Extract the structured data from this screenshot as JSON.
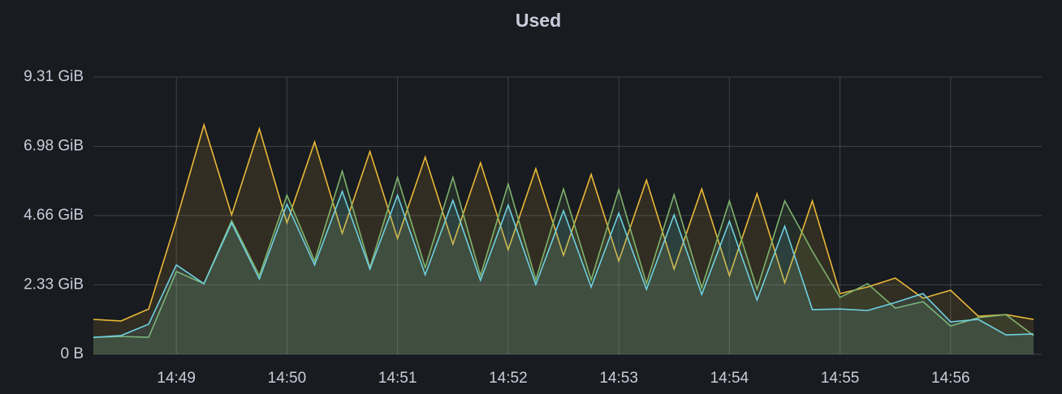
{
  "chart_data": {
    "type": "area",
    "title": "Used",
    "categories": [
      null,
      null,
      null,
      "14:49",
      null,
      null,
      null,
      "14:50",
      null,
      null,
      null,
      "14:51",
      null,
      null,
      null,
      "14:52",
      null,
      null,
      null,
      "14:53",
      null,
      null,
      null,
      "14:54",
      null,
      null,
      null,
      "14:55",
      null,
      null,
      null,
      "14:56",
      null,
      null,
      null
    ],
    "series": [
      {
        "color": "#eab839",
        "values": [
          1.17,
          1.12,
          1.52,
          4.5,
          7.7,
          4.68,
          7.57,
          4.41,
          7.13,
          4.06,
          6.81,
          3.89,
          6.62,
          3.7,
          6.43,
          3.51,
          6.23,
          3.32,
          6.04,
          3.13,
          5.85,
          2.86,
          5.55,
          2.64,
          5.39,
          2.4,
          5.15,
          2.04,
          2.26,
          2.56,
          1.88,
          2.15,
          1.28,
          1.33,
          1.17
        ]
      },
      {
        "color": "#7eb26d",
        "values": [
          0.57,
          0.6,
          0.57,
          2.78,
          2.37,
          4.49,
          2.64,
          5.34,
          3.13,
          6.15,
          2.91,
          5.94,
          2.91,
          5.94,
          2.64,
          5.72,
          2.5,
          5.55,
          2.5,
          5.53,
          2.37,
          5.36,
          2.23,
          5.15,
          2.18,
          5.15,
          3.46,
          1.91,
          2.37,
          1.55,
          1.77,
          0.95,
          1.23,
          1.33,
          0.63
        ]
      },
      {
        "color": "#6ed0e0",
        "values": [
          0.57,
          0.63,
          1.01,
          3.0,
          2.37,
          4.41,
          2.53,
          5.04,
          3.0,
          5.47,
          2.86,
          5.34,
          2.67,
          5.17,
          2.48,
          5.01,
          2.34,
          4.82,
          2.26,
          4.74,
          2.18,
          4.68,
          2.01,
          4.47,
          1.82,
          4.3,
          1.5,
          1.52,
          1.47,
          1.74,
          2.04,
          1.09,
          1.17,
          0.65,
          0.68
        ]
      }
    ],
    "ylim": [
      0,
      9.31
    ],
    "yticks": [
      {
        "value": 0,
        "label": "0 B"
      },
      {
        "value": 2.33,
        "label": "2.33 GiB"
      },
      {
        "value": 4.66,
        "label": "4.66 GiB"
      },
      {
        "value": 6.98,
        "label": "6.98 GiB"
      },
      {
        "value": 9.31,
        "label": "9.31 GiB"
      }
    ],
    "grid": true
  }
}
